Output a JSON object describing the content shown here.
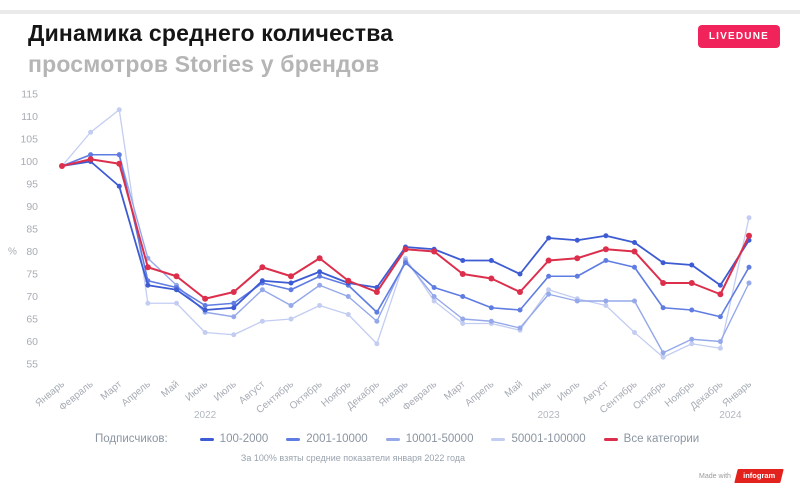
{
  "header": {
    "title_line1": "Динамика среднего количества",
    "title_line2": "просмотров Stories у брендов",
    "brand_badge": "LIVEDUNE"
  },
  "chart_data": {
    "type": "line",
    "title": "Динамика среднего количества просмотров Stories у брендов",
    "ylabel": "%",
    "ylim": [
      55,
      115
    ],
    "ytick_step": 5,
    "grid": false,
    "legend_position": "bottom",
    "x": [
      "Январь",
      "Февраль",
      "Март",
      "Апрель",
      "Май",
      "Июнь",
      "Июль",
      "Август",
      "Сентябрь",
      "Октябрь",
      "Ноябрь",
      "Декабрь",
      "Январь",
      "Февраль",
      "Март",
      "Апрель",
      "Май",
      "Июнь",
      "Июль",
      "Август",
      "Сентябрь",
      "Октябрь",
      "Ноябрь",
      "Декабрь",
      "Январь"
    ],
    "year_labels": [
      {
        "label": "2022",
        "at": 5
      },
      {
        "label": "2023",
        "at": 17
      },
      {
        "label": "2024",
        "at": 23.35
      }
    ],
    "legend_title": "Подписчиков:",
    "series": [
      {
        "name": "100-2000",
        "color": "#3d5bd3",
        "values": [
          99,
          100,
          94.5,
          72.5,
          71.5,
          67,
          67.5,
          73.5,
          73,
          75.5,
          73,
          72,
          81,
          80.5,
          78,
          78,
          75,
          83,
          82.5,
          83.5,
          82,
          77.5,
          77,
          72.5,
          82.5
        ]
      },
      {
        "name": "2001-10000",
        "color": "#5f7ce2",
        "values": [
          99,
          101.5,
          101.5,
          73.5,
          72,
          68,
          68.5,
          73,
          71.5,
          74.5,
          72.5,
          66.5,
          77.5,
          72,
          70,
          67.5,
          67,
          74.5,
          74.5,
          78,
          76.5,
          67.5,
          67,
          65.5,
          76.5
        ]
      },
      {
        "name": "10001-50000",
        "color": "#94a8ea",
        "values": [
          99,
          101.5,
          101.5,
          78.5,
          72.5,
          66.5,
          65.5,
          71.5,
          68,
          72.5,
          70,
          64.5,
          78,
          70,
          65,
          64.5,
          63,
          70.5,
          69,
          69,
          69,
          57.5,
          60.5,
          60,
          73
        ]
      },
      {
        "name": "50001-100000",
        "color": "#c3cdf2",
        "values": [
          99,
          106.5,
          111.5,
          68.5,
          68.5,
          62,
          61.5,
          64.5,
          65,
          68,
          66,
          59.5,
          78.5,
          69,
          64,
          64,
          62.5,
          71.5,
          69.5,
          68,
          62,
          56.5,
          59.5,
          58.5,
          87.5
        ]
      },
      {
        "name": "Все категории",
        "color": "#dc2f4c",
        "values": [
          99,
          100.5,
          99.5,
          76.5,
          74.5,
          69.5,
          71,
          76.5,
          74.5,
          78.5,
          73.5,
          71,
          80.5,
          80,
          75,
          74,
          71,
          78,
          78.5,
          80.5,
          80,
          73,
          73,
          70.5,
          83.5
        ]
      }
    ],
    "footnote": "За 100% взяты средние показатели января 2022 года"
  },
  "credit": {
    "made_with": "Made with",
    "brand": "infogram"
  }
}
